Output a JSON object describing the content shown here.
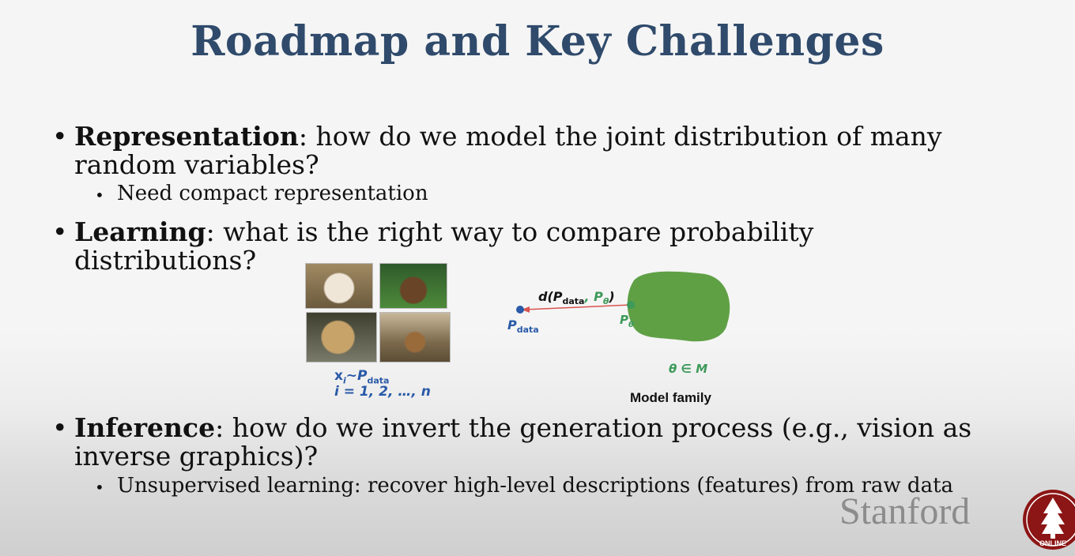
{
  "slide": {
    "title": "Roadmap and Key Challenges",
    "bullets": [
      {
        "term": "Representation",
        "text": ": how do we model the joint distribution of many random variables?",
        "sub": [
          "Need compact representation"
        ]
      },
      {
        "term": "Learning",
        "text": ": what is the right way to compare probability distributions?"
      },
      {
        "term": "Inference",
        "text": ": how do we invert the generation process (e.g., vision as inverse graphics)?",
        "sub": [
          "Unsupervised learning: recover high-level descriptions (features) from raw data"
        ]
      }
    ]
  },
  "figure": {
    "samples_line1": "x",
    "samples_sub": "i",
    "samples_tilde": "~P",
    "samples_data": "data",
    "samples_line2": "i = 1, 2, …, n",
    "distance_label": "d(P",
    "distance_data": "data",
    "distance_comma": ", P",
    "distance_theta": "θ",
    "distance_close": ")",
    "p_data": "P",
    "p_data_sub": "data",
    "p_theta": "P",
    "p_theta_sub": "θ",
    "set_label": "θ ∈ M",
    "model_family": "Model family",
    "colors": {
      "blob": "#5fa045",
      "blue": "#2a5aa8",
      "green": "#3d9a5a",
      "arrow": "#d9534f"
    }
  },
  "branding": {
    "wordmark": "Stanford",
    "seal_text": "ONLINE"
  }
}
